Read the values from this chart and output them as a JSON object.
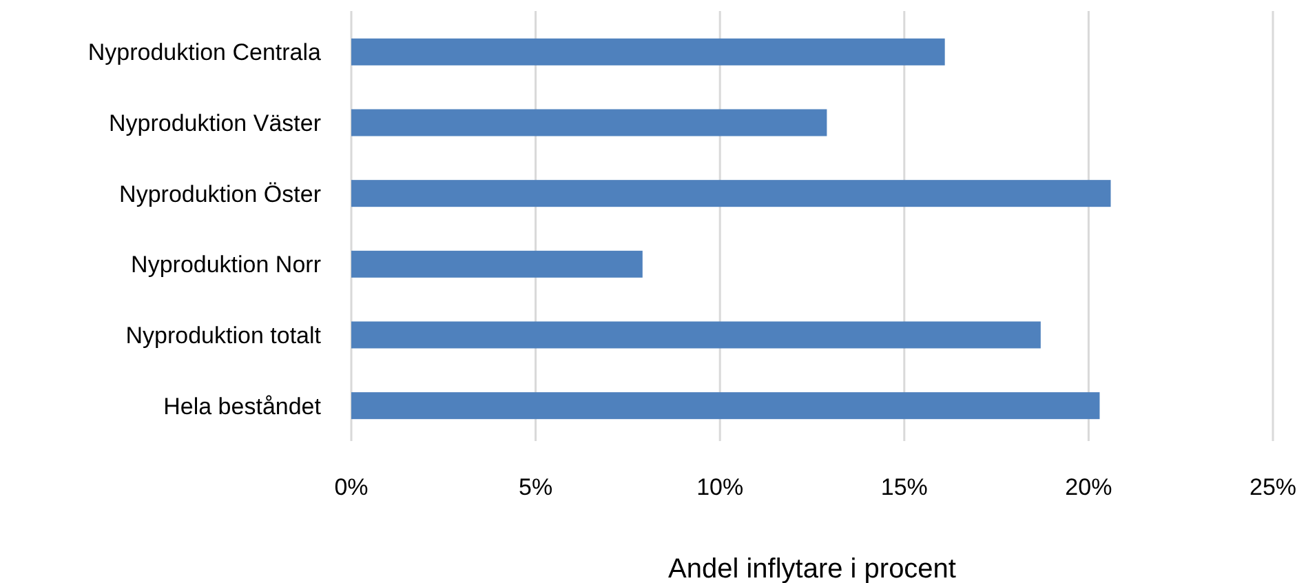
{
  "chart_data": {
    "type": "bar",
    "orientation": "horizontal",
    "xlabel": "Andel inflytare i procent",
    "categories": [
      "Nyproduktion Centrala",
      "Nyproduktion Väster",
      "Nyproduktion Öster",
      "Nyproduktion Norr",
      "Nyproduktion totalt",
      "Hela beståndet"
    ],
    "values": [
      16.1,
      12.9,
      20.6,
      7.9,
      18.7,
      20.3
    ],
    "color": "#4f81bd",
    "xlim": [
      0,
      25
    ],
    "xticks": [
      {
        "value": 0,
        "label": "0%"
      },
      {
        "value": 5,
        "label": "5%"
      },
      {
        "value": 10,
        "label": "10%"
      },
      {
        "value": 15,
        "label": "15%"
      },
      {
        "value": 20,
        "label": "20%"
      },
      {
        "value": 25,
        "label": "25%"
      }
    ],
    "grid": "x"
  }
}
